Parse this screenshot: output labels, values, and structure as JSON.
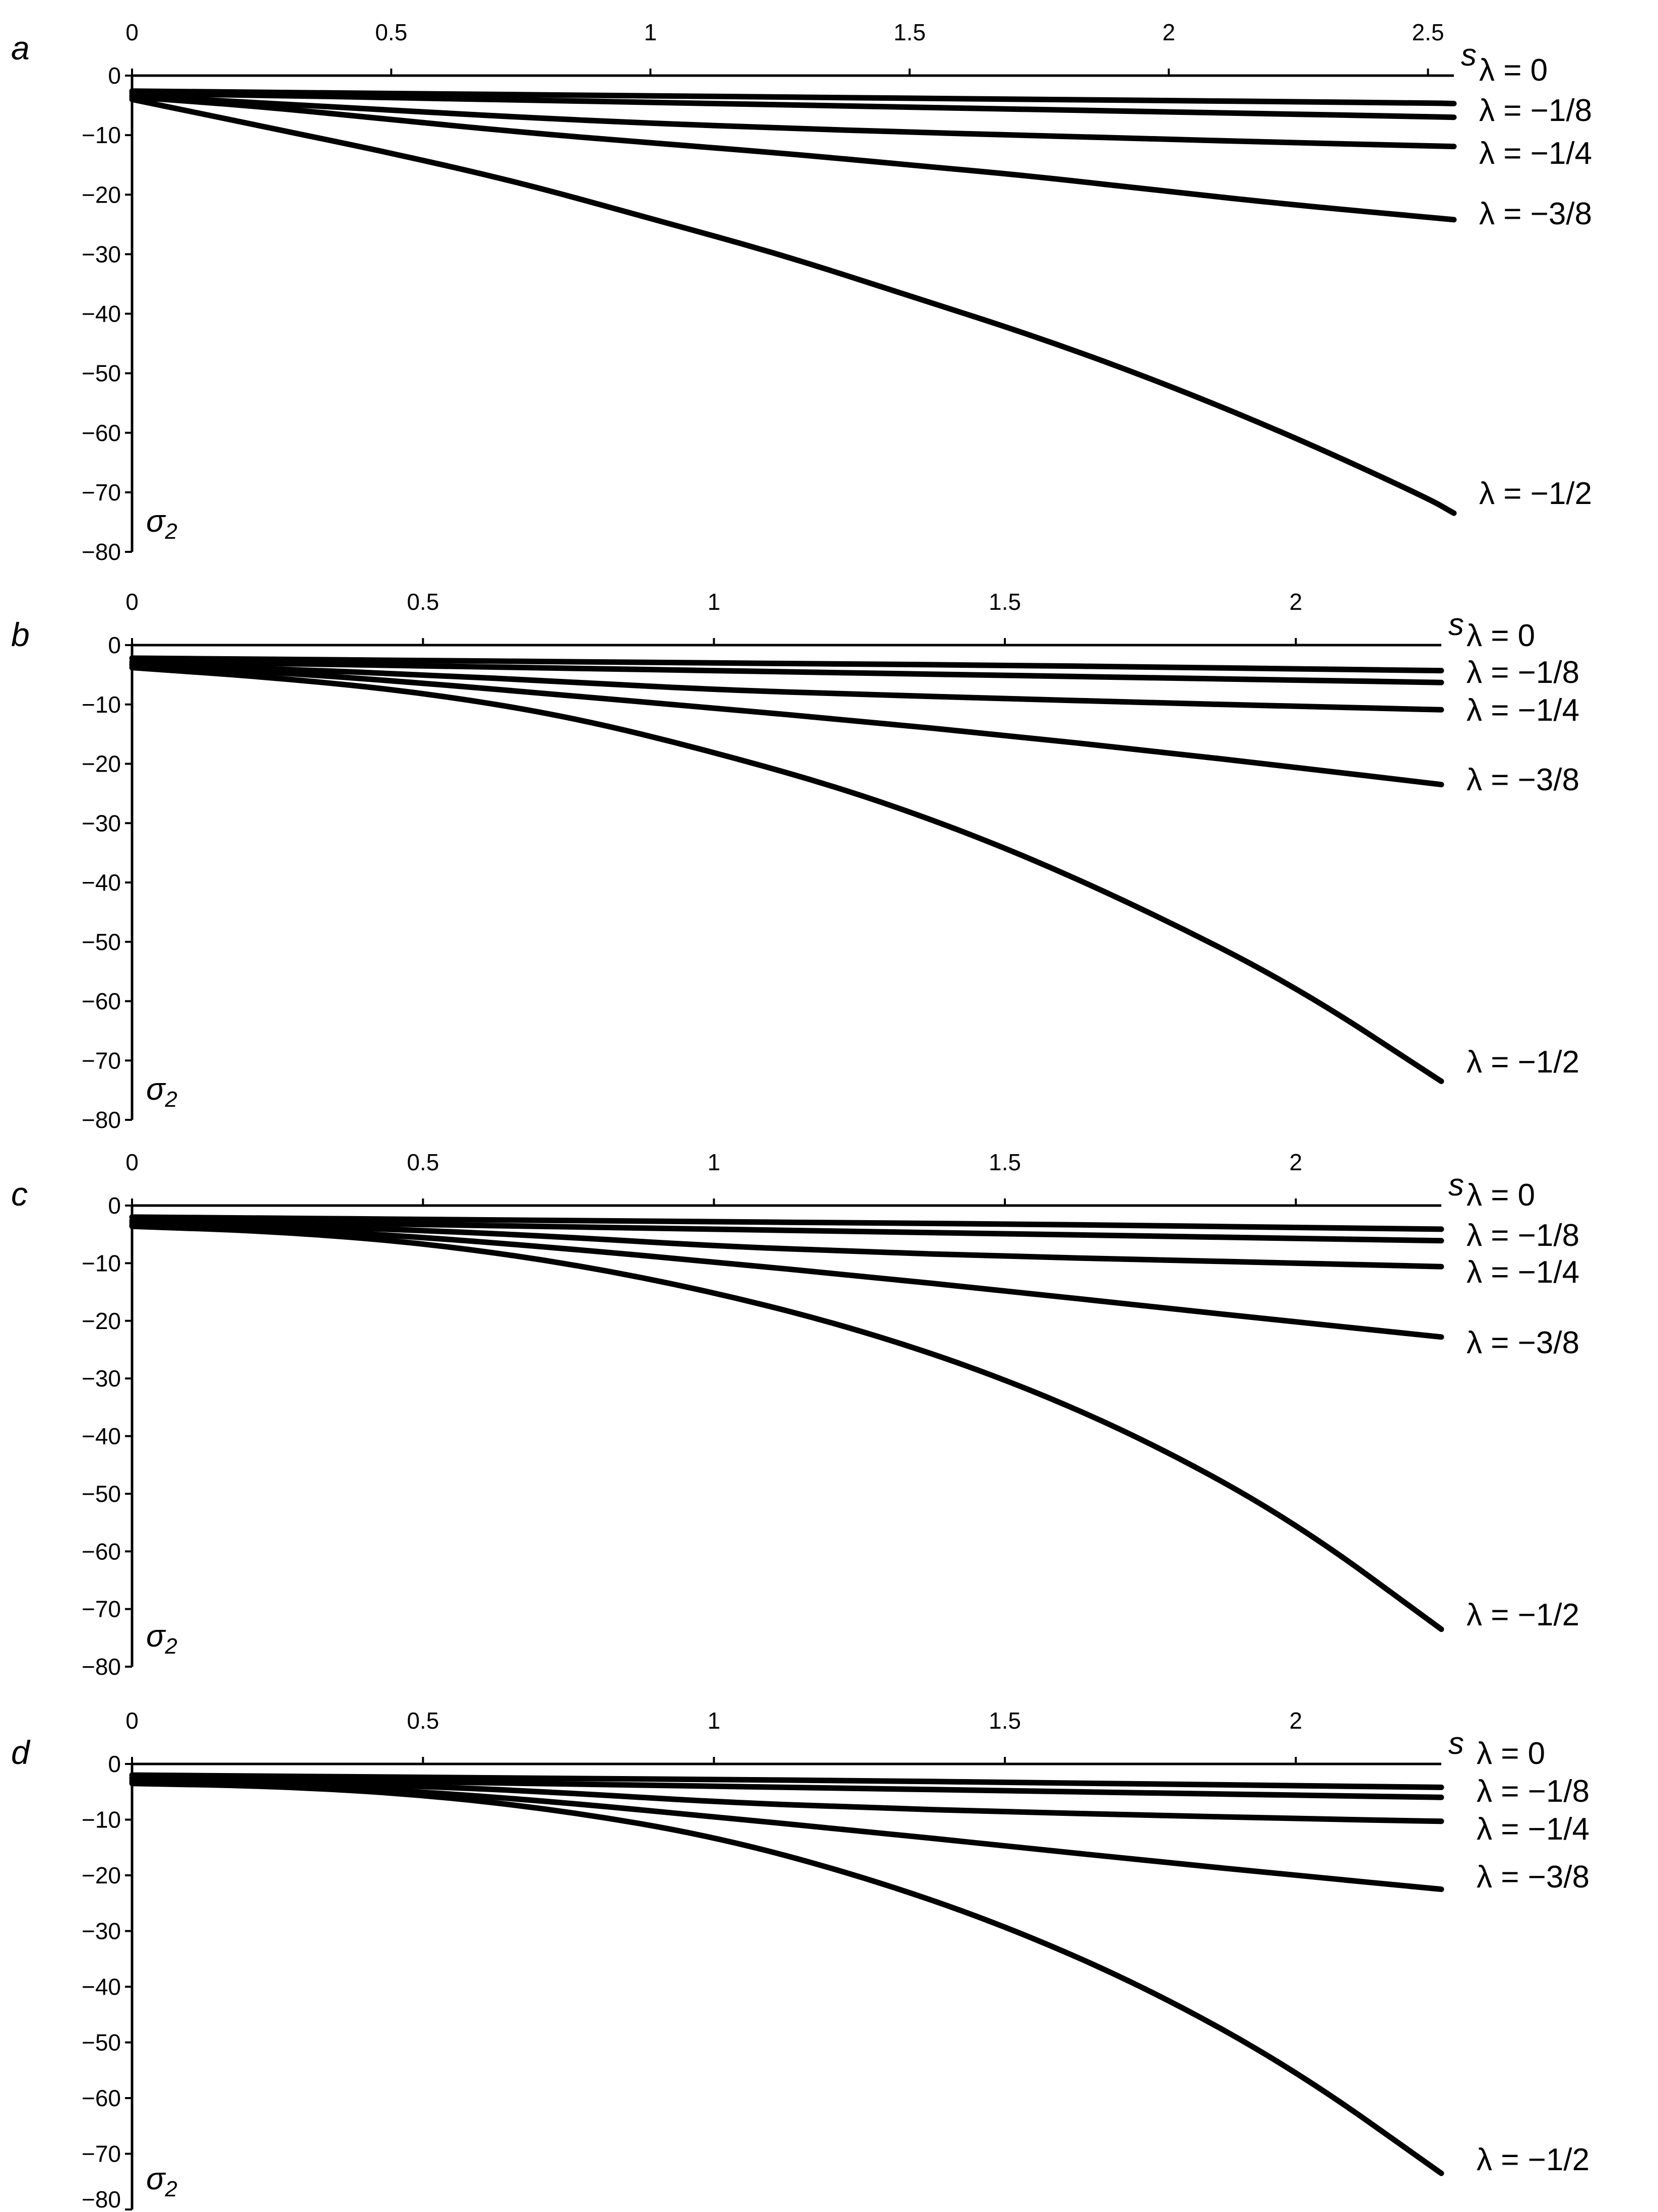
{
  "figure": {
    "colors": {
      "line": "#000000",
      "axis": "#000000",
      "tick_text": "#333333",
      "background": "#ffffff"
    }
  },
  "chart_data": [
    {
      "panel": "a",
      "type": "line",
      "xlabel": "s",
      "ylabel": "σ2",
      "xlim": [
        0,
        2.55
      ],
      "ylim": [
        -80,
        0
      ],
      "xticks": [
        "0",
        "0.5",
        "1",
        "1.5",
        "2",
        "2.5"
      ],
      "yticks": [
        "0",
        "−10",
        "−20",
        "−30",
        "−40",
        "−50",
        "−60",
        "−70",
        "−80"
      ],
      "grid": false,
      "x": [
        0,
        0.25,
        0.5,
        0.75,
        1.0,
        1.25,
        1.5,
        1.75,
        2.0,
        2.25,
        2.5,
        2.55
      ],
      "series": [
        {
          "name": "λ = 0",
          "values": [
            -2.6,
            -2.8,
            -3.0,
            -3.2,
            -3.4,
            -3.6,
            -3.8,
            -4.0,
            -4.2,
            -4.4,
            -4.6,
            -4.7
          ]
        },
        {
          "name": "λ = −1/8",
          "values": [
            -3.0,
            -3.3,
            -3.7,
            -4.1,
            -4.5,
            -4.9,
            -5.3,
            -5.7,
            -6.1,
            -6.5,
            -6.9,
            -7.0
          ]
        },
        {
          "name": "λ = −1/4",
          "values": [
            -3.4,
            -4.6,
            -5.8,
            -7.0,
            -8.0,
            -8.8,
            -9.5,
            -10.1,
            -10.7,
            -11.3,
            -11.8,
            -11.9
          ]
        },
        {
          "name": "λ = −3/8",
          "values": [
            -3.6,
            -5.2,
            -7.4,
            -9.5,
            -11.3,
            -13.0,
            -15.0,
            -17.0,
            -19.5,
            -21.8,
            -23.8,
            -24.2
          ]
        },
        {
          "name": "λ = −1/2",
          "values": [
            -4.0,
            -8.5,
            -13.0,
            -18.0,
            -24.0,
            -30.0,
            -37.0,
            -44.0,
            -52.0,
            -61.0,
            -71.0,
            -73.5
          ]
        }
      ]
    },
    {
      "panel": "b",
      "type": "line",
      "xlabel": "s",
      "ylabel": "σ2",
      "xlim": [
        0,
        2.25
      ],
      "ylim": [
        -80,
        0
      ],
      "xticks": [
        "0",
        "0.5",
        "1",
        "1.5",
        "2"
      ],
      "yticks": [
        "0",
        "−10",
        "−20",
        "−30",
        "−40",
        "−50",
        "−60",
        "−70",
        "−80"
      ],
      "grid": false,
      "x": [
        0,
        0.25,
        0.5,
        0.75,
        1.0,
        1.25,
        1.5,
        1.75,
        2.0,
        2.25
      ],
      "series": [
        {
          "name": "λ = 0",
          "values": [
            -2.2,
            -2.4,
            -2.6,
            -2.8,
            -3.0,
            -3.2,
            -3.4,
            -3.7,
            -4.0,
            -4.3
          ]
        },
        {
          "name": "λ = −1/8",
          "values": [
            -2.8,
            -3.1,
            -3.5,
            -3.9,
            -4.3,
            -4.7,
            -5.1,
            -5.5,
            -5.9,
            -6.3
          ]
        },
        {
          "name": "λ = −1/4",
          "values": [
            -3.2,
            -4.0,
            -5.0,
            -6.2,
            -7.5,
            -8.3,
            -9.0,
            -9.7,
            -10.3,
            -10.9
          ]
        },
        {
          "name": "λ = −3/8",
          "values": [
            -3.4,
            -4.6,
            -6.4,
            -8.5,
            -10.6,
            -12.8,
            -15.2,
            -17.8,
            -20.6,
            -23.5
          ]
        },
        {
          "name": "λ = −1/2",
          "values": [
            -3.8,
            -5.5,
            -8.0,
            -12.0,
            -18.0,
            -25.0,
            -34.0,
            -45.0,
            -57.5,
            -73.5
          ]
        }
      ]
    },
    {
      "panel": "c",
      "type": "line",
      "xlabel": "s",
      "ylabel": "σ2",
      "xlim": [
        0,
        2.25
      ],
      "ylim": [
        -80,
        0
      ],
      "xticks": [
        "0",
        "0.5",
        "1",
        "1.5",
        "2"
      ],
      "yticks": [
        "0",
        "−10",
        "−20",
        "−30",
        "−40",
        "−50",
        "−60",
        "−70",
        "−80"
      ],
      "grid": false,
      "x": [
        0,
        0.25,
        0.5,
        0.75,
        1.0,
        1.25,
        1.5,
        1.75,
        2.0,
        2.25
      ],
      "series": [
        {
          "name": "λ = 0",
          "values": [
            -2.0,
            -2.2,
            -2.4,
            -2.6,
            -2.8,
            -3.0,
            -3.2,
            -3.5,
            -3.8,
            -4.1
          ]
        },
        {
          "name": "λ = −1/8",
          "values": [
            -2.6,
            -2.9,
            -3.3,
            -3.7,
            -4.1,
            -4.5,
            -4.9,
            -5.3,
            -5.7,
            -6.1
          ]
        },
        {
          "name": "λ = −1/4",
          "values": [
            -3.0,
            -3.5,
            -4.3,
            -5.5,
            -7.0,
            -8.0,
            -8.8,
            -9.4,
            -10.0,
            -10.6
          ]
        },
        {
          "name": "λ = −3/8",
          "values": [
            -3.3,
            -4.0,
            -5.5,
            -7.5,
            -9.8,
            -12.2,
            -14.8,
            -17.5,
            -20.2,
            -22.8
          ]
        },
        {
          "name": "λ = −1/2",
          "values": [
            -3.6,
            -4.5,
            -6.5,
            -10.0,
            -15.0,
            -21.5,
            -30.0,
            -41.0,
            -55.0,
            -73.5
          ]
        }
      ]
    },
    {
      "panel": "d",
      "type": "line",
      "xlabel": "s",
      "ylabel": "σ2",
      "xlim": [
        0,
        2.25
      ],
      "ylim": [
        -80,
        0
      ],
      "xticks": [
        "0",
        "0.5",
        "1",
        "1.5",
        "2"
      ],
      "yticks": [
        "0",
        "−10",
        "−20",
        "−30",
        "−40",
        "−50",
        "−60",
        "−70",
        "−80"
      ],
      "grid": false,
      "x": [
        0,
        0.25,
        0.5,
        0.75,
        1.0,
        1.25,
        1.5,
        1.75,
        2.0,
        2.25
      ],
      "series": [
        {
          "name": "λ = 0",
          "values": [
            -2.0,
            -2.2,
            -2.4,
            -2.6,
            -2.8,
            -3.0,
            -3.3,
            -3.6,
            -3.9,
            -4.2
          ]
        },
        {
          "name": "λ = −1/8",
          "values": [
            -2.5,
            -2.8,
            -3.2,
            -3.6,
            -4.0,
            -4.4,
            -4.8,
            -5.2,
            -5.6,
            -6.0
          ]
        },
        {
          "name": "λ = −1/4",
          "values": [
            -2.9,
            -3.3,
            -4.0,
            -5.2,
            -6.8,
            -7.8,
            -8.6,
            -9.2,
            -9.8,
            -10.3
          ]
        },
        {
          "name": "λ = −3/8",
          "values": [
            -3.2,
            -3.7,
            -5.0,
            -7.0,
            -9.5,
            -12.0,
            -14.7,
            -17.4,
            -20.0,
            -22.5
          ]
        },
        {
          "name": "λ = −1/2",
          "values": [
            -3.5,
            -4.0,
            -5.5,
            -8.5,
            -13.0,
            -20.0,
            -29.0,
            -40.5,
            -55.0,
            -73.5
          ]
        }
      ]
    }
  ]
}
